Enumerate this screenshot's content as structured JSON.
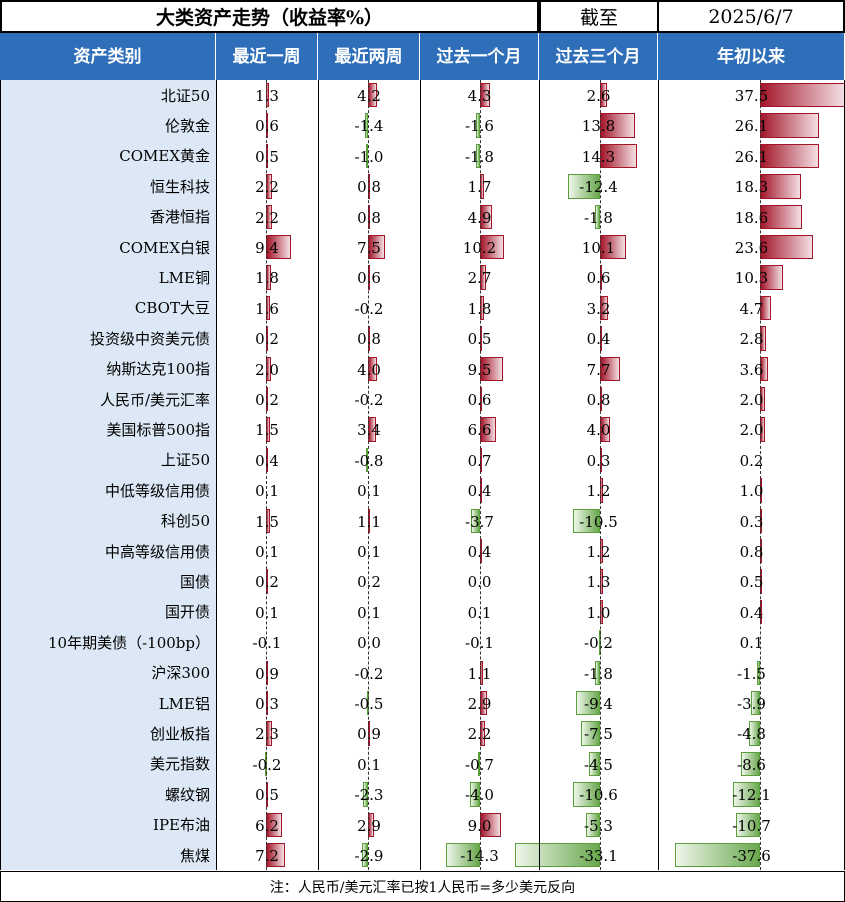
{
  "title": "大类资产走势（收益率%）",
  "as_of_label": "截至",
  "as_of_date": "2025/6/7",
  "headers": [
    "资产类别",
    "最近一周",
    "最近两周",
    "过去一个月",
    "过去三个月",
    "年初以来"
  ],
  "note": "注：人民币/美元汇率已按1人民币=多少美元反向",
  "colors": {
    "header_bg": "#2f6fba",
    "name_bg": "#dce8f5",
    "positive": "#a3162a",
    "negative": "#6aa84f"
  },
  "chart_data": {
    "type": "table",
    "categories": [
      "北证50",
      "伦敦金",
      "COMEX黄金",
      "恒生科技",
      "香港恒指",
      "COMEX白银",
      "LME铜",
      "CBOT大豆",
      "投资级中资美元债",
      "纳斯达克100指",
      "人民币/美元汇率",
      "美国标普500指",
      "上证50",
      "中低等级信用债",
      "科创50",
      "中高等级信用债",
      "国债",
      "国开债",
      "10年期美债（-100bp）",
      "沪深300",
      "LME铝",
      "创业板指",
      "美元指数",
      "螺纹钢",
      "IPE布油",
      "焦煤"
    ],
    "series": [
      {
        "name": "最近一周",
        "values": [
          1.3,
          0.6,
          0.5,
          2.2,
          2.2,
          9.4,
          1.8,
          1.6,
          0.2,
          2.0,
          0.2,
          1.5,
          0.4,
          0.1,
          1.5,
          0.1,
          0.2,
          0.1,
          -0.1,
          0.9,
          0.3,
          2.3,
          -0.2,
          0.5,
          6.2,
          7.2
        ]
      },
      {
        "name": "最近两周",
        "values": [
          4.2,
          -1.4,
          -1.0,
          0.8,
          0.8,
          7.5,
          0.6,
          -0.2,
          0.8,
          4.0,
          -0.2,
          3.4,
          -0.8,
          0.1,
          1.1,
          0.1,
          0.2,
          0.1,
          0.0,
          -0.2,
          -0.5,
          0.9,
          0.1,
          -2.3,
          2.9,
          -2.9
        ]
      },
      {
        "name": "过去一个月",
        "values": [
          4.3,
          -1.6,
          -1.8,
          1.7,
          4.9,
          10.2,
          2.7,
          1.8,
          0.5,
          9.5,
          0.6,
          6.6,
          0.7,
          0.4,
          -3.7,
          0.4,
          0.0,
          0.1,
          -0.1,
          1.1,
          2.9,
          2.2,
          -0.7,
          -4.0,
          9.0,
          -14.3
        ]
      },
      {
        "name": "过去三个月",
        "values": [
          2.6,
          13.8,
          14.3,
          -12.4,
          -1.8,
          10.1,
          0.6,
          3.2,
          0.4,
          7.7,
          0.8,
          4.0,
          0.3,
          1.2,
          -10.5,
          1.2,
          1.3,
          1.0,
          -0.2,
          -1.8,
          -9.4,
          -7.5,
          -4.5,
          -10.6,
          -5.3,
          -33.1
        ]
      },
      {
        "name": "年初以来",
        "values": [
          37.5,
          26.1,
          26.1,
          18.3,
          18.6,
          23.6,
          10.3,
          4.7,
          2.8,
          3.6,
          2.0,
          2.0,
          0.2,
          1.0,
          0.3,
          0.8,
          0.5,
          0.4,
          0.1,
          -1.5,
          -3.9,
          -4.8,
          -8.6,
          -12.1,
          -10.7,
          -37.6
        ]
      }
    ]
  }
}
